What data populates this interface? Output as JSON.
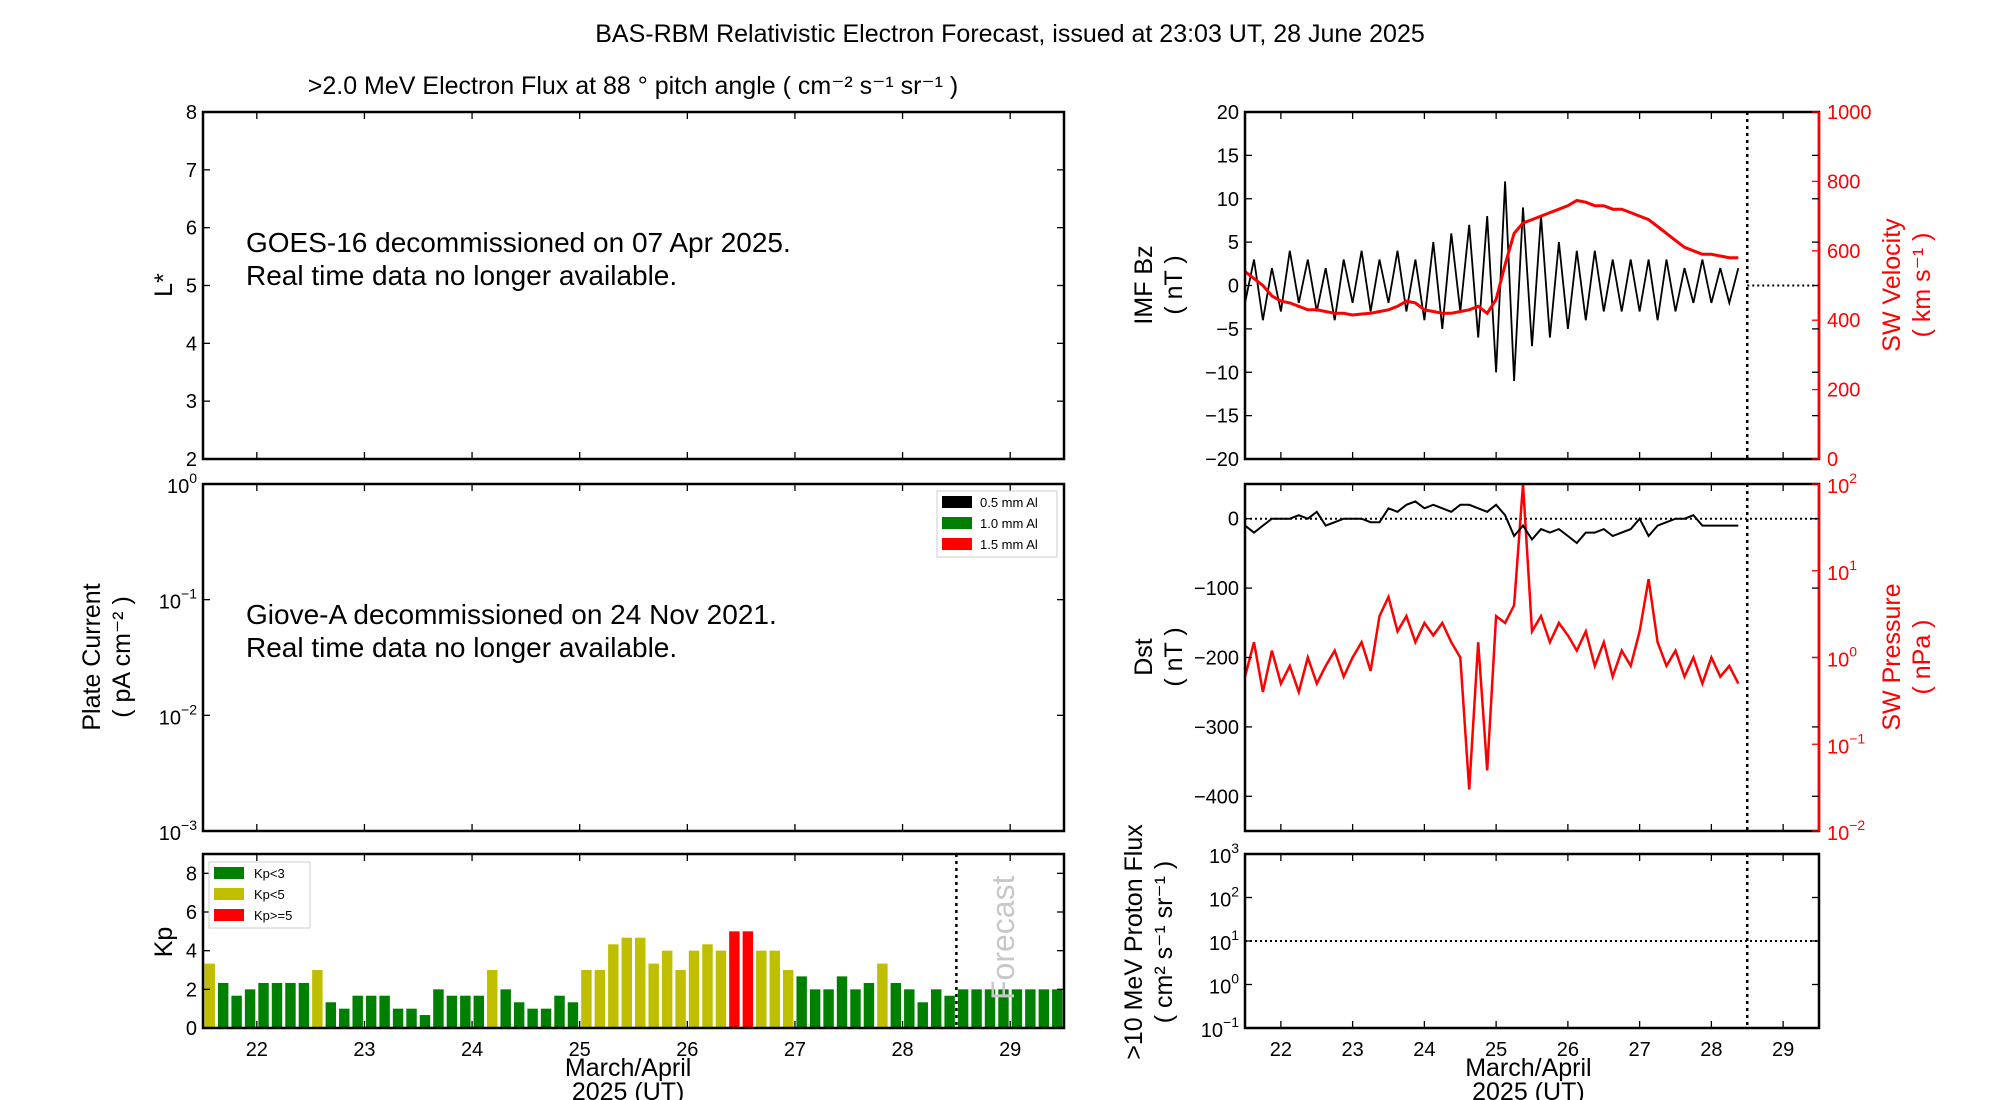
{
  "figure_title": "BAS-RBM Relativistic Electron Forecast, issued at 23:03 UT, 28 June 2025",
  "colors": {
    "red": "#ff0000",
    "black": "#000000",
    "kp_low": "#008000",
    "kp_mid": "#bfbf00",
    "kp_high": "#ff0000",
    "forecast_text": "#c8c8c8"
  },
  "x_axis": {
    "ticks": [
      22,
      23,
      24,
      25,
      26,
      27,
      28,
      29
    ],
    "xlim": [
      21.5,
      29.5
    ],
    "label_line1": "March/April",
    "label_line2": "2025 (UT)",
    "forecast_start": 28.5
  },
  "chart_data": [
    {
      "id": "electron-flux",
      "type": "heatmap",
      "title": ">2.0 MeV Electron Flux at 88 °  pitch angle ( cm⁻² s⁻¹ sr⁻¹ )",
      "ylabel": "L*",
      "ylim": [
        2,
        8
      ],
      "yticks": [
        2,
        3,
        4,
        5,
        6,
        7,
        8
      ],
      "message_line1": "GOES-16 decommissioned on 07 Apr 2025.",
      "message_line2": "Real time data no longer available."
    },
    {
      "id": "plate-current",
      "type": "line",
      "ylabel_line1": "Plate Current",
      "ylabel_line2": "( pA cm⁻² )",
      "yscale": "log",
      "ylim": [
        0.001,
        1
      ],
      "ytick_exponents": [
        -3,
        -2,
        -1,
        0
      ],
      "legend": [
        {
          "name": "0.5 mm Al",
          "color": "#000000"
        },
        {
          "name": "1.0 mm Al",
          "color": "#008000"
        },
        {
          "name": "1.5 mm Al",
          "color": "#ff0000"
        }
      ],
      "legend_placement": "top-right",
      "message_line1": "Giove-A decommissioned on 24 Nov 2021.",
      "message_line2": "Real time data no longer available."
    },
    {
      "id": "kp",
      "type": "bar",
      "ylabel": "Kp",
      "ylim": [
        0,
        9
      ],
      "yticks": [
        0,
        2,
        4,
        6,
        8
      ],
      "bar_interval_hours": 3,
      "x_start": 21.5,
      "values": [
        3.33,
        2.33,
        1.67,
        2,
        2.33,
        2.33,
        2.33,
        2.33,
        3,
        1.33,
        1,
        1.67,
        1.67,
        1.67,
        1,
        1,
        0.67,
        2,
        1.67,
        1.67,
        1.67,
        3,
        2,
        1.33,
        1,
        1,
        1.67,
        1.33,
        3,
        3,
        4.33,
        4.67,
        4.67,
        3.33,
        4,
        3,
        4,
        4.33,
        4,
        5,
        5,
        4,
        4,
        3,
        2.67,
        2,
        2,
        2.67,
        2,
        2.33,
        3.33,
        2.33,
        2,
        1.33,
        2,
        1.67,
        2,
        2,
        2,
        2,
        2,
        2,
        2,
        2
      ],
      "legend": [
        {
          "name": "Kp<3",
          "color": "#008000"
        },
        {
          "name": "Kp<5",
          "color": "#bfbf00"
        },
        {
          "name": "Kp>=5",
          "color": "#ff0000"
        }
      ],
      "legend_placement": "top-left",
      "forecast_label": "Forecast"
    },
    {
      "id": "imf-sw-velocity",
      "type": "line",
      "ylabel_line1": "IMF Bz",
      "ylabel_line2": "( nT )",
      "ylim": [
        -20,
        20
      ],
      "yticks": [
        -20,
        -15,
        -10,
        -5,
        0,
        5,
        10,
        15,
        20
      ],
      "y2label_line1": "SW Velocity",
      "y2label_line2": "( km s⁻¹ )",
      "y2lim": [
        0,
        1000
      ],
      "y2ticks": [
        0,
        200,
        400,
        600,
        800,
        1000
      ],
      "x_start": 21.5,
      "interval_hours": 3,
      "series": [
        {
          "key": "imf_bz",
          "color": "#000000",
          "values": [
            -2,
            3,
            -4,
            2,
            -3,
            4,
            -2,
            3,
            -3,
            2,
            -4,
            3,
            -2,
            4,
            -3,
            3,
            -2,
            4,
            -3,
            3,
            -4,
            5,
            -5,
            6,
            -3,
            7,
            -6,
            8,
            -10,
            12,
            -11,
            9,
            -7,
            8,
            -6,
            5,
            -5,
            4,
            -4,
            4,
            -3,
            3,
            -3,
            3,
            -3,
            3,
            -4,
            3,
            -3,
            2,
            -2,
            3,
            -2,
            2,
            -2,
            2
          ]
        },
        {
          "key": "sw_velocity",
          "color": "#ff0000",
          "values": [
            540,
            520,
            500,
            470,
            455,
            450,
            440,
            430,
            430,
            425,
            420,
            420,
            415,
            418,
            420,
            425,
            430,
            440,
            455,
            450,
            430,
            425,
            420,
            420,
            425,
            430,
            440,
            420,
            460,
            560,
            650,
            680,
            690,
            700,
            710,
            720,
            730,
            745,
            740,
            730,
            730,
            720,
            720,
            710,
            700,
            690,
            670,
            650,
            630,
            610,
            600,
            590,
            590,
            585,
            580,
            580
          ]
        }
      ]
    },
    {
      "id": "dst-sw-pressure",
      "type": "line",
      "ylabel_line1": "Dst",
      "ylabel_line2": "( nT )",
      "ylim": [
        -450,
        50
      ],
      "yticks": [
        -400,
        -300,
        -200,
        -100,
        0
      ],
      "y2label_line1": "SW Pressure",
      "y2label_line2": "( nPa )",
      "y2scale": "log",
      "y2lim": [
        0.01,
        100
      ],
      "y2tick_exponents": [
        -2,
        -1,
        0,
        1,
        2
      ],
      "x_start": 21.5,
      "interval_hours": 3,
      "series": [
        {
          "key": "dst",
          "color": "#000000",
          "values": [
            -10,
            -20,
            -10,
            0,
            0,
            0,
            5,
            0,
            10,
            -10,
            -5,
            0,
            0,
            0,
            -5,
            -5,
            15,
            10,
            20,
            25,
            15,
            20,
            15,
            10,
            20,
            20,
            15,
            10,
            20,
            5,
            -25,
            -10,
            -30,
            -15,
            -20,
            -15,
            -25,
            -35,
            -20,
            -20,
            -15,
            -25,
            -20,
            -15,
            0,
            -25,
            -10,
            -5,
            0,
            0,
            5,
            -10,
            -10,
            -10,
            -10,
            -10
          ]
        },
        {
          "key": "sw_pressure",
          "color": "#ff0000",
          "values": [
            0.6,
            1.5,
            0.4,
            1.2,
            0.5,
            0.8,
            0.4,
            1.0,
            0.5,
            0.8,
            1.2,
            0.6,
            1.0,
            1.5,
            0.7,
            3.0,
            5.0,
            2.0,
            3.0,
            1.5,
            2.5,
            1.8,
            2.5,
            1.5,
            1.0,
            0.03,
            1.5,
            0.05,
            3.0,
            2.5,
            4.0,
            100,
            2.0,
            3.0,
            1.5,
            2.5,
            1.8,
            1.2,
            2.0,
            0.8,
            1.5,
            0.6,
            1.2,
            0.8,
            2.0,
            8.0,
            1.5,
            0.8,
            1.2,
            0.6,
            1.0,
            0.5,
            1.0,
            0.6,
            0.8,
            0.5
          ]
        }
      ]
    },
    {
      "id": "proton-flux",
      "type": "line",
      "ylabel_line1": ">10 MeV Proton Flux",
      "ylabel_line2": "( cm² s⁻¹ sr⁻¹ )",
      "yscale": "log",
      "ylim": [
        0.1,
        1000
      ],
      "ytick_exponents": [
        -1,
        0,
        1,
        2,
        3
      ],
      "threshold": 10
    }
  ]
}
